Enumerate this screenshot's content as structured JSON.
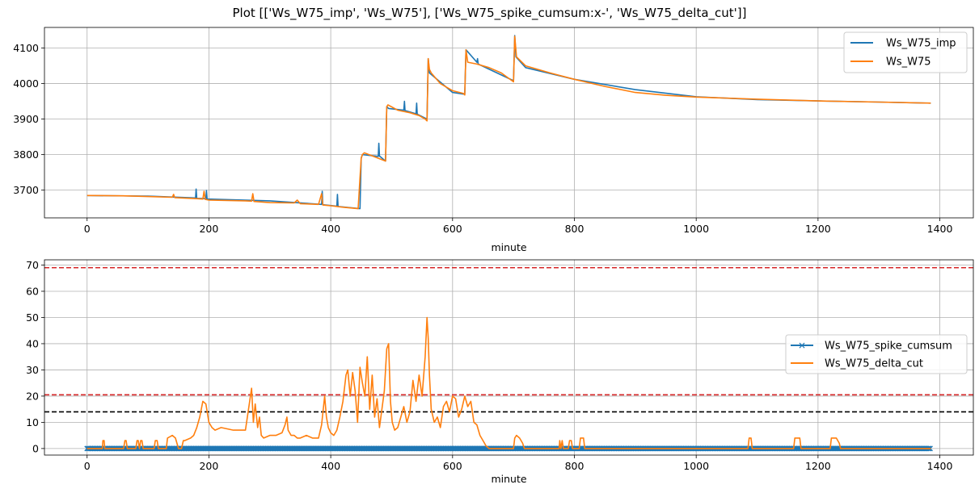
{
  "figure_title": "Plot [['Ws_W75_imp', 'Ws_W75'], ['Ws_W75_spike_cumsum:x-', 'Ws_W75_delta_cut']]",
  "colors": {
    "blue": "#1f77b4",
    "orange": "#ff7f0e",
    "red": "#d62728",
    "black": "#000000",
    "grid": "#b0b0b0"
  },
  "chart_data": [
    {
      "type": "line",
      "xlabel": "minute",
      "ylabel": "",
      "xlim": [
        -70,
        1455
      ],
      "ylim": [
        3622,
        4158
      ],
      "xticks": [
        0,
        200,
        400,
        600,
        800,
        1000,
        1200,
        1400
      ],
      "yticks": [
        3700,
        3800,
        3900,
        4000,
        4100
      ],
      "grid": true,
      "legend_position": "top-right",
      "series": [
        {
          "name": "Ws_W75_imp",
          "color": "#1f77b4",
          "x": [
            0,
            100,
            178,
            179,
            180,
            195,
            196,
            197,
            300,
            385,
            386,
            387,
            410,
            411,
            412,
            448,
            450,
            452,
            478,
            479,
            480,
            490,
            492,
            495,
            520,
            521,
            522,
            540,
            541,
            542,
            558,
            560,
            562,
            600,
            620,
            622,
            640,
            641,
            642,
            700,
            702,
            704,
            720,
            800,
            900,
            1000,
            1100,
            1200,
            1300,
            1385
          ],
          "y": [
            3685,
            3683,
            3678,
            3703,
            3677,
            3676,
            3699,
            3675,
            3670,
            3660,
            3697,
            3659,
            3655,
            3688,
            3654,
            3648,
            3790,
            3800,
            3795,
            3832,
            3796,
            3782,
            3935,
            3930,
            3925,
            3950,
            3924,
            3915,
            3945,
            3914,
            3900,
            4070,
            4030,
            3975,
            3970,
            4095,
            4060,
            4070,
            4055,
            4008,
            4135,
            4075,
            4045,
            4012,
            3983,
            3963,
            3955,
            3951,
            3948,
            3945
          ]
        },
        {
          "name": "Ws_W75",
          "color": "#ff7f0e",
          "x": [
            0,
            60,
            100,
            140,
            142,
            144,
            180,
            190,
            192,
            194,
            200,
            260,
            270,
            272,
            274,
            300,
            340,
            345,
            350,
            380,
            385,
            387,
            400,
            420,
            445,
            450,
            452,
            455,
            470,
            490,
            492,
            494,
            510,
            530,
            545,
            555,
            558,
            560,
            562,
            565,
            580,
            600,
            618,
            620,
            622,
            625,
            640,
            660,
            680,
            700,
            702,
            705,
            720,
            760,
            800,
            850,
            900,
            950,
            1000,
            1100,
            1200,
            1300,
            1385
          ],
          "y": [
            3685,
            3684,
            3682,
            3680,
            3688,
            3679,
            3676,
            3675,
            3697,
            3674,
            3672,
            3670,
            3669,
            3690,
            3668,
            3665,
            3664,
            3672,
            3662,
            3660,
            3690,
            3658,
            3656,
            3652,
            3648,
            3790,
            3800,
            3805,
            3795,
            3782,
            3935,
            3940,
            3925,
            3918,
            3910,
            3900,
            3895,
            4070,
            4040,
            4030,
            4000,
            3980,
            3972,
            3968,
            4095,
            4060,
            4055,
            4045,
            4030,
            4005,
            4133,
            4075,
            4050,
            4030,
            4012,
            3992,
            3975,
            3967,
            3962,
            3956,
            3951,
            3948,
            3945
          ]
        }
      ]
    },
    {
      "type": "line",
      "xlabel": "minute",
      "ylabel": "",
      "xlim": [
        -70,
        1455
      ],
      "ylim": [
        -2.5,
        72
      ],
      "xticks": [
        0,
        200,
        400,
        600,
        800,
        1000,
        1200,
        1400
      ],
      "yticks": [
        0,
        10,
        20,
        30,
        40,
        50,
        60,
        70
      ],
      "grid": true,
      "legend_position": "center-right",
      "hlines": [
        {
          "y": 69,
          "color": "#d62728",
          "style": "dashed"
        },
        {
          "y": 20.5,
          "color": "#d62728",
          "style": "dashed"
        },
        {
          "y": 14,
          "color": "#000000",
          "style": "dashed"
        }
      ],
      "series": [
        {
          "name": "Ws_W75_spike_cumsum",
          "color": "#1f77b4",
          "marker": "x",
          "x": [
            0,
            1385
          ],
          "y": [
            0,
            0
          ]
        },
        {
          "name": "Ws_W75_delta_cut",
          "color": "#ff7f0e",
          "x": [
            0,
            25,
            26,
            28,
            29,
            60,
            62,
            64,
            66,
            68,
            80,
            82,
            84,
            86,
            88,
            90,
            92,
            110,
            112,
            115,
            117,
            120,
            130,
            132,
            140,
            145,
            150,
            155,
            158,
            160,
            170,
            175,
            180,
            185,
            190,
            195,
            200,
            205,
            210,
            220,
            240,
            250,
            260,
            265,
            270,
            273,
            276,
            280,
            283,
            286,
            290,
            300,
            310,
            320,
            325,
            328,
            330,
            335,
            340,
            345,
            350,
            360,
            370,
            380,
            385,
            390,
            393,
            396,
            400,
            405,
            410,
            415,
            420,
            425,
            428,
            432,
            436,
            440,
            444,
            448,
            452,
            456,
            460,
            464,
            468,
            472,
            476,
            480,
            484,
            488,
            492,
            495,
            498,
            501,
            505,
            510,
            515,
            520,
            525,
            530,
            535,
            540,
            545,
            550,
            555,
            558,
            560,
            562,
            565,
            570,
            575,
            580,
            585,
            590,
            595,
            600,
            605,
            610,
            615,
            620,
            625,
            630,
            635,
            640,
            645,
            650,
            655,
            660,
            661,
            700,
            702,
            705,
            710,
            715,
            718,
            720,
            775,
            776,
            778,
            780,
            782,
            790,
            792,
            795,
            797,
            800,
            808,
            810,
            812,
            815,
            817,
            1085,
            1087,
            1090,
            1092,
            1160,
            1162,
            1165,
            1170,
            1172,
            1175,
            1220,
            1222,
            1225,
            1230,
            1235,
            1237,
            1385
          ],
          "y": [
            0,
            0,
            3,
            3,
            0,
            0,
            3,
            3,
            0,
            0,
            0,
            3,
            3,
            0,
            3,
            3,
            0,
            0,
            3,
            3,
            0,
            0,
            0,
            4,
            5,
            4,
            0,
            0,
            3,
            3,
            4,
            5,
            8,
            12,
            18,
            17,
            10,
            8,
            7,
            8,
            7,
            7,
            7,
            15,
            23,
            10,
            17,
            8,
            12,
            5,
            4,
            5,
            5,
            6,
            9,
            12,
            7,
            5,
            5,
            4,
            4,
            5,
            4,
            4,
            9,
            20,
            12,
            8,
            6,
            5,
            7,
            12,
            18,
            28,
            30,
            20,
            29,
            22,
            10,
            31,
            25,
            20,
            35,
            15,
            28,
            12,
            19,
            8,
            15,
            22,
            38,
            40,
            18,
            10,
            7,
            8,
            12,
            16,
            10,
            14,
            26,
            18,
            28,
            20,
            35,
            50,
            42,
            28,
            15,
            10,
            12,
            8,
            16,
            18,
            14,
            20,
            19,
            12,
            15,
            20,
            16,
            18,
            10,
            9,
            5,
            3,
            1,
            0,
            0,
            0,
            4,
            5,
            4,
            2,
            0,
            0,
            0,
            3,
            0,
            3,
            0,
            0,
            3,
            3,
            0,
            0,
            0,
            4,
            4,
            4,
            0,
            0,
            4,
            4,
            0,
            0,
            4,
            4,
            4,
            0,
            0,
            0,
            4,
            4,
            4,
            2,
            0,
            0
          ]
        }
      ]
    }
  ]
}
